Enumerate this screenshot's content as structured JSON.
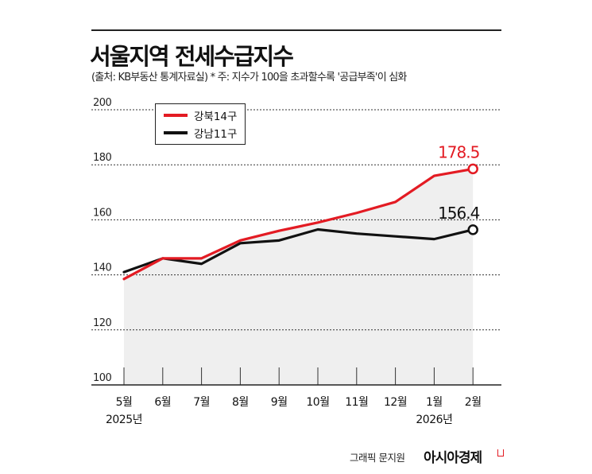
{
  "title": "서울지역 전세수급지수",
  "subtitle": "(출처: KB부동산 통계자료실)  * 주: 지수가 100을 초과할수록 '공급부족'이 심화",
  "credit": "그래픽 문지원",
  "brand": "아시아경제",
  "chart_data": {
    "type": "line",
    "title": "서울지역 전세수급지수",
    "categories": [
      "5월",
      "6월",
      "7월",
      "8월",
      "9월",
      "10월",
      "11월",
      "12월",
      "1월",
      "2월"
    ],
    "year_labels": [
      {
        "index": 0,
        "label": "2025년"
      },
      {
        "index": 8,
        "label": "2026년"
      }
    ],
    "ylim": [
      100,
      200
    ],
    "yticks": [
      100,
      120,
      140,
      160,
      180,
      200
    ],
    "grid": true,
    "legend": "top-left",
    "series": [
      {
        "name": "강북14구",
        "color": "#e31b23",
        "values": [
          138.5,
          146.0,
          146.0,
          152.5,
          156.0,
          159.0,
          162.5,
          166.5,
          176.0,
          178.5
        ],
        "end_label": "178.5"
      },
      {
        "name": "강남11구",
        "color": "#111111",
        "values": [
          141.0,
          146.0,
          144.0,
          151.5,
          152.5,
          156.5,
          155.0,
          154.0,
          153.0,
          156.4
        ],
        "end_label": "156.4"
      }
    ]
  }
}
